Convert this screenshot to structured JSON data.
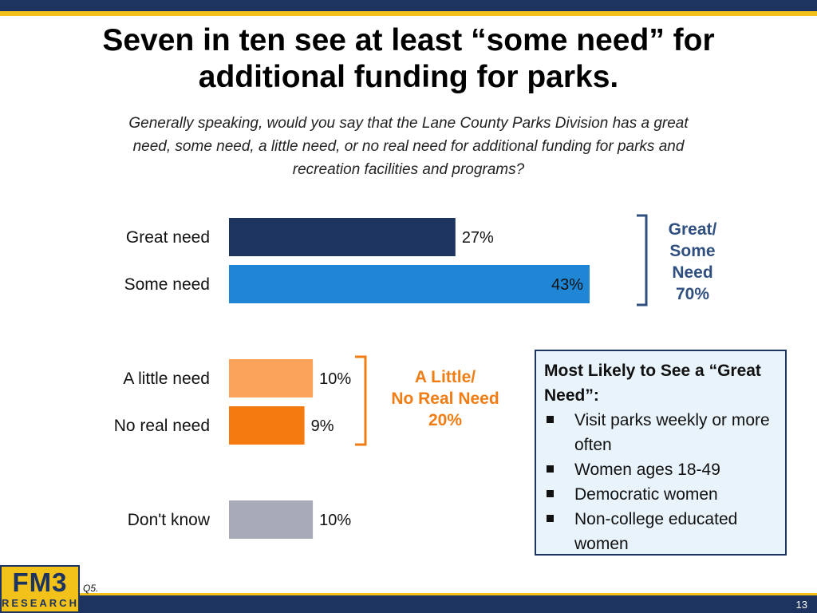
{
  "title": "Seven in ten see at least “some need” for additional funding for parks.",
  "subtitle": "Generally speaking, would you say that the Lane County Parks Division has a great need, some need, a little need, or no real need for additional funding for parks and recreation facilities and programs?",
  "chart_data": {
    "type": "bar",
    "orientation": "horizontal",
    "categories": [
      "Great need",
      "Some need",
      "A little need",
      "No real need",
      "Don't know"
    ],
    "values": [
      27,
      43,
      10,
      9,
      10
    ],
    "value_labels": [
      "27%",
      "43%",
      "10%",
      "9%",
      "10%"
    ],
    "colors": [
      "#1d3461",
      "#1f86d6",
      "#fba25a",
      "#f57a10",
      "#a8aab8"
    ],
    "groups": [
      {
        "name": "Great/ Some Need",
        "label_lines": [
          "Great/",
          "Some",
          "Need",
          "70%"
        ],
        "members": [
          "Great need",
          "Some need"
        ],
        "total": 70,
        "color": "#2f4f7f"
      },
      {
        "name": "A Little/ No Real Need",
        "label_lines": [
          "A Little/",
          "No Real Need",
          "20%"
        ],
        "members": [
          "A little need",
          "No real need"
        ],
        "total": 20,
        "color": "#f07d14"
      }
    ],
    "xlim": [
      0,
      100
    ],
    "title": "",
    "xlabel": "",
    "ylabel": ""
  },
  "callout": {
    "heading": "Most Likely to See a “Great Need”:",
    "items": [
      "Visit parks weekly or more often",
      "Women ages 18-49",
      "Democratic women",
      "Non-college educated women"
    ]
  },
  "logo": {
    "main": "FM3",
    "sub": "RESEARCH"
  },
  "question_ref": "Q5.",
  "page_number": "13",
  "colors": {
    "navy": "#1d3461",
    "gold": "#f2c21b",
    "callout_bg": "#e8f3fb"
  }
}
